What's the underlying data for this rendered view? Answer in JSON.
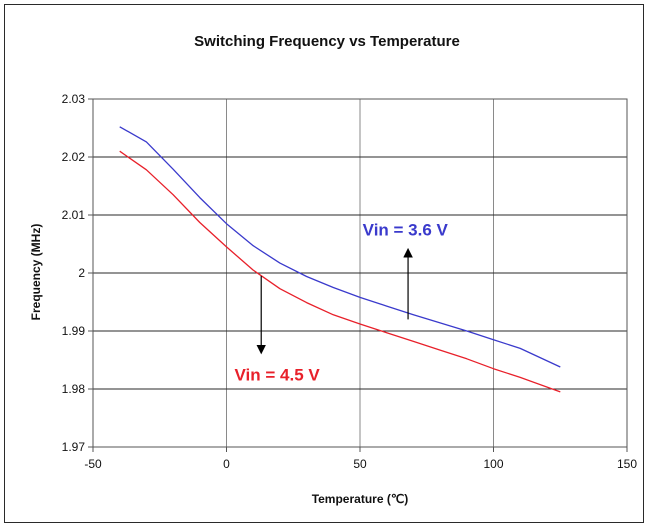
{
  "chart_data": {
    "type": "line",
    "title": "Switching Frequency vs Temperature",
    "xlabel": "Temperature (℃)",
    "ylabel": "Frequency (MHz)",
    "xlim": [
      -50,
      150
    ],
    "ylim": [
      1.97,
      2.03
    ],
    "x_ticks": [
      "-50",
      "0",
      "50",
      "100",
      "150"
    ],
    "y_ticks": [
      "1.97",
      "1.98",
      "1.99",
      "2",
      "2.01",
      "2.02",
      "2.03"
    ],
    "grid": true,
    "series": [
      {
        "name": "Vin = 3.6 V",
        "color": "#3a3acc",
        "x": [
          -40,
          -30,
          -20,
          -10,
          0,
          10,
          20,
          30,
          40,
          50,
          60,
          70,
          80,
          90,
          100,
          110,
          125
        ],
        "y": [
          2.0252,
          2.0226,
          2.0179,
          2.013,
          2.0085,
          2.0047,
          2.0017,
          1.9994,
          1.9975,
          1.9958,
          1.9943,
          1.9928,
          1.9914,
          1.99,
          1.9885,
          1.987,
          1.9838
        ]
      },
      {
        "name": "Vin = 4.5 V",
        "color": "#e8202a",
        "x": [
          -40,
          -30,
          -20,
          -10,
          0,
          10,
          20,
          30,
          40,
          50,
          60,
          70,
          80,
          90,
          100,
          110,
          125
        ],
        "y": [
          2.021,
          2.0178,
          2.0135,
          2.0087,
          2.0045,
          2.0005,
          1.9973,
          1.9949,
          1.9928,
          1.9912,
          1.9897,
          1.9882,
          1.9867,
          1.9852,
          1.9835,
          1.982,
          1.9795
        ]
      }
    ],
    "annotations": [
      {
        "text": "Vin = 3.6 V",
        "series": 0,
        "color": "#3a3acc",
        "arrow_from": [
          68,
          1.992
        ],
        "arrow_to": [
          68,
          2.0035
        ]
      },
      {
        "text": "Vin = 4.5 V",
        "series": 1,
        "color": "#e8202a",
        "arrow_from": [
          13,
          1.9995
        ],
        "arrow_to": [
          13,
          1.9868
        ]
      }
    ]
  }
}
